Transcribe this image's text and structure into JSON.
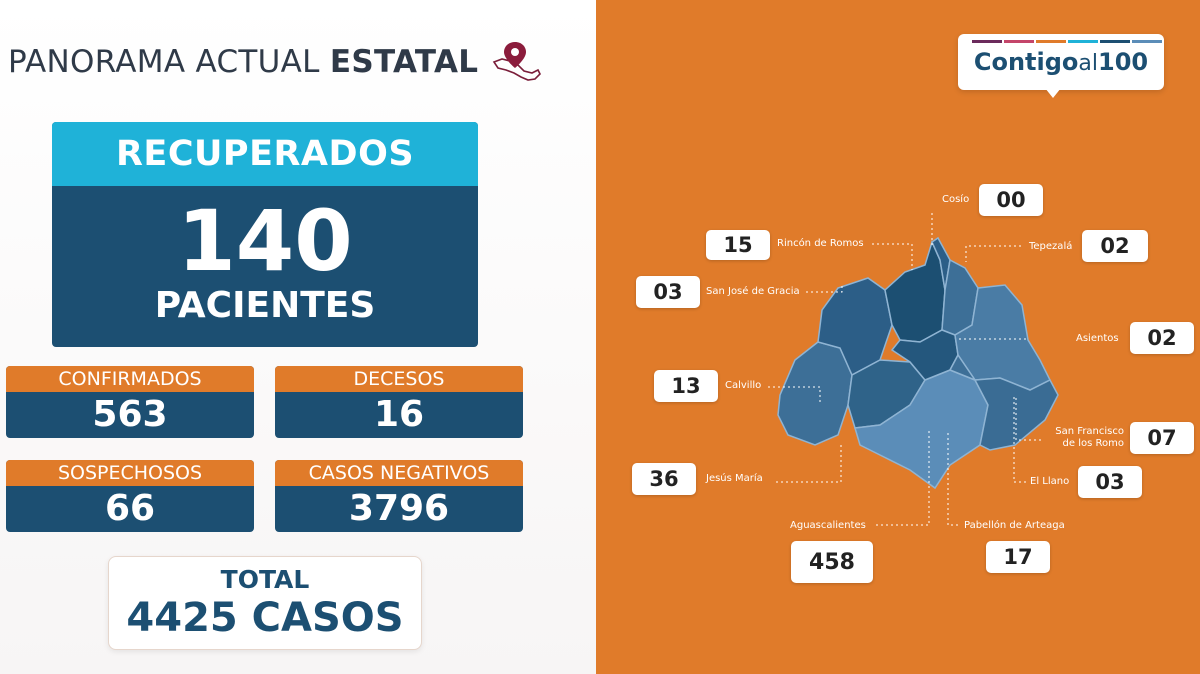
{
  "header": {
    "title_light": "PANORAMA ACTUAL",
    "title_bold": "ESTATAL",
    "icon": "mexico-map-pin-icon"
  },
  "recovered": {
    "label": "RECUPERADOS",
    "value": "140",
    "unit": "PACIENTES"
  },
  "stats": [
    {
      "label": "CONFIRMADOS",
      "value": "563"
    },
    {
      "label": "DECESOS",
      "value": "16"
    },
    {
      "label": "SOSPECHOSOS",
      "value": "66"
    },
    {
      "label": "CASOS NEGATIVOS",
      "value": "3796"
    }
  ],
  "total": {
    "label": "TOTAL",
    "value": "4425 CASOS"
  },
  "brand": {
    "part1": "Contigo",
    "part2": "al",
    "part3": "100"
  },
  "municipalities": [
    {
      "name": "Cosío",
      "value": "00"
    },
    {
      "name": "Rincón de Romos",
      "value": "15"
    },
    {
      "name": "Tepezalá",
      "value": "02"
    },
    {
      "name": "San José de Gracia",
      "value": "03"
    },
    {
      "name": "Asientos",
      "value": "02"
    },
    {
      "name": "Calvillo",
      "value": "13"
    },
    {
      "name": "San Francisco de los Romo",
      "value": "07"
    },
    {
      "name": "Jesús María",
      "value": "36"
    },
    {
      "name": "El Llano",
      "value": "03"
    },
    {
      "name": "Aguascalientes",
      "value": "458"
    },
    {
      "name": "Pabellón de Arteaga",
      "value": "17"
    }
  ],
  "colors": {
    "navy": "#1c4f72",
    "cyan": "#1fb2d8",
    "orange": "#e07b2a",
    "text_dark": "#2f3a48",
    "brand_bars": [
      "#6b2a5c",
      "#c4456a",
      "#e07b2a",
      "#1fb2d8",
      "#1c4f72",
      "#5b8db8"
    ]
  }
}
